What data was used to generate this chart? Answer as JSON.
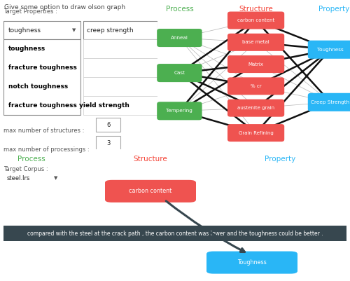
{
  "title_text": "Give some option to draw olson graph",
  "title_color": "#444444",
  "title_fontsize": 6.5,
  "ui_left": {
    "target_props_label": "Target Properties :",
    "dropdown_text": "toughness",
    "dropdown_arrow": "▼",
    "dropdown_extra": "creep strength",
    "dropdown_items": [
      "toughness",
      "fracture toughness",
      "notch toughness",
      "fracture toughness yield strength"
    ],
    "max_struct_label": "max number of structures :",
    "max_struct_val": "6",
    "max_proc_label": "max number of processings :",
    "max_proc_val": "3",
    "corpus_label": "Target Corpus :",
    "corpus_val": "steel.lrs"
  },
  "graph_top": {
    "process_label": "Process",
    "structure_label": "Structure",
    "property_label": "Property",
    "process_color": "#4CAF50",
    "structure_color": "#F44336",
    "property_color": "#29B6F6",
    "process_nodes": [
      "Anneal",
      "Cast",
      "Tempering"
    ],
    "structure_nodes": [
      "carbon content",
      "base metal",
      "Matrix",
      "% cr",
      "austenite grain",
      "Grain Refining"
    ],
    "property_nodes": [
      "Toughness",
      "Creep Strength"
    ],
    "process_node_color": "#4CAF50",
    "structure_node_color": "#EF5350",
    "property_node_color": "#29B6F6",
    "edges_thick": [
      [
        "Cast",
        "carbon content"
      ],
      [
        "Cast",
        "Matrix"
      ],
      [
        "Cast",
        "% cr"
      ],
      [
        "Cast",
        "austenite grain"
      ],
      [
        "Cast",
        "Grain Refining"
      ],
      [
        "Tempering",
        "carbon content"
      ],
      [
        "Tempering",
        "Matrix"
      ],
      [
        "Tempering",
        "Grain Refining"
      ],
      [
        "carbon content",
        "Toughness"
      ],
      [
        "base metal",
        "Toughness"
      ],
      [
        "Matrix",
        "Toughness"
      ],
      [
        "% cr",
        "Toughness"
      ],
      [
        "austenite grain",
        "Toughness"
      ],
      [
        "Grain Refining",
        "Toughness"
      ],
      [
        "carbon content",
        "Creep Strength"
      ],
      [
        "Grain Refining",
        "Creep Strength"
      ]
    ],
    "edges_thin": [
      [
        "Anneal",
        "carbon content"
      ],
      [
        "Anneal",
        "base metal"
      ],
      [
        "Anneal",
        "Matrix"
      ],
      [
        "Anneal",
        "% cr"
      ],
      [
        "Anneal",
        "austenite grain"
      ],
      [
        "Anneal",
        "Grain Refining"
      ],
      [
        "Cast",
        "base metal"
      ],
      [
        "Tempering",
        "base metal"
      ],
      [
        "Tempering",
        "% cr"
      ],
      [
        "Tempering",
        "austenite grain"
      ],
      [
        "base metal",
        "Creep Strength"
      ],
      [
        "Matrix",
        "Creep Strength"
      ],
      [
        "% cr",
        "Creep Strength"
      ],
      [
        "austenite grain",
        "Creep Strength"
      ]
    ]
  },
  "graph_bottom": {
    "process_label": "Process",
    "structure_label": "Structure",
    "property_label": "Property",
    "process_color": "#4CAF50",
    "structure_color": "#F44336",
    "property_color": "#29B6F6",
    "structure_node": "carbon content",
    "property_node": "Toughness",
    "structure_node_color": "#EF5350",
    "property_node_color": "#29B6F6",
    "sentence": "compared with the steel at the crack path , the carbon content was lower and the toughness could be better .",
    "sentence_bg": "#37474F",
    "sentence_color": "#FFFFFF",
    "sentence_fontsize": 5.5,
    "arrow_color": "#37474F"
  },
  "bg_color": "#FFFFFF"
}
